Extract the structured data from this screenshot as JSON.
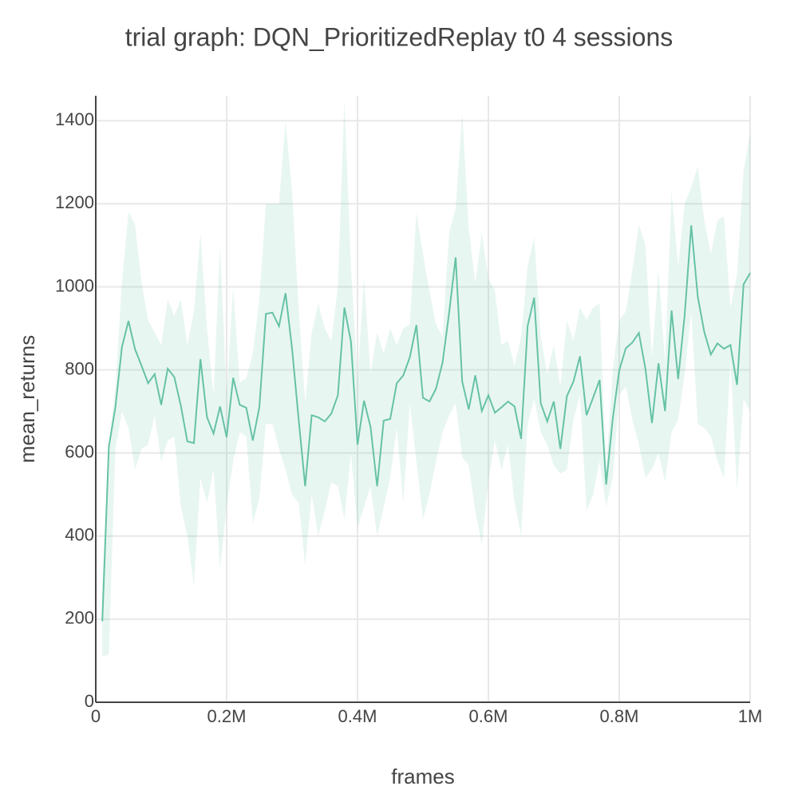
{
  "chart_data": {
    "type": "line",
    "title": "trial graph: DQN_PrioritizedReplay t0 4 sessions",
    "x_label": "frames",
    "y_label": "mean_returns",
    "xlim": [
      0,
      1000000
    ],
    "ylim": [
      0,
      1460
    ],
    "xticks": [
      0,
      {
        "value": 200000,
        "label": "0.2M"
      },
      {
        "value": 400000,
        "label": "0.4M"
      },
      {
        "value": 600000,
        "label": "0.6M"
      },
      {
        "value": 800000,
        "label": "0.8M"
      },
      {
        "value": 1000000,
        "label": "1M"
      }
    ],
    "yticks": [
      0,
      200,
      400,
      600,
      800,
      1000,
      1200,
      1400
    ],
    "grid": true,
    "x": [
      10000,
      20000,
      30000,
      40000,
      50000,
      60000,
      70000,
      80000,
      90000,
      100000,
      110000,
      120000,
      130000,
      140000,
      150000,
      160000,
      170000,
      180000,
      190000,
      200000,
      210000,
      220000,
      230000,
      240000,
      250000,
      260000,
      270000,
      280000,
      290000,
      300000,
      310000,
      320000,
      330000,
      340000,
      350000,
      360000,
      370000,
      380000,
      390000,
      400000,
      410000,
      420000,
      430000,
      440000,
      450000,
      460000,
      470000,
      480000,
      490000,
      500000,
      510000,
      520000,
      530000,
      540000,
      550000,
      560000,
      570000,
      580000,
      590000,
      600000,
      610000,
      620000,
      630000,
      640000,
      650000,
      660000,
      670000,
      680000,
      690000,
      700000,
      710000,
      720000,
      730000,
      740000,
      750000,
      760000,
      770000,
      780000,
      790000,
      800000,
      810000,
      820000,
      830000,
      840000,
      850000,
      860000,
      870000,
      880000,
      890000,
      900000,
      910000,
      920000,
      930000,
      940000,
      950000,
      960000,
      970000,
      980000,
      990000,
      1000000
    ],
    "series": [
      {
        "color": "#66c2a5",
        "values": [
          195,
          615,
          710,
          855,
          918,
          850,
          810,
          768,
          790,
          716,
          803,
          783,
          714,
          628,
          624,
          826,
          686,
          647,
          712,
          638,
          781,
          716,
          709,
          630,
          710,
          935,
          938,
          905,
          985,
          851,
          682,
          520,
          691,
          686,
          676,
          695,
          739,
          950,
          868,
          620,
          726,
          662,
          520,
          678,
          682,
          768,
          787,
          831,
          908,
          733,
          724,
          755,
          818,
          937,
          1071,
          772,
          705,
          787,
          701,
          739,
          697,
          710,
          724,
          712,
          634,
          906,
          974,
          720,
          676,
          724,
          610,
          737,
          772,
          833,
          691,
          733,
          776,
          524,
          682,
          799,
          852,
          866,
          889,
          803,
          672,
          816,
          701,
          943,
          778,
          932,
          1148,
          976,
          891,
          837,
          864,
          851,
          860,
          764,
          1006,
          1033
        ]
      }
    ],
    "band": {
      "color": "#66c2a5",
      "upper": [
        280,
        620,
        760,
        1010,
        1180,
        1150,
        1010,
        920,
        890,
        860,
        970,
        930,
        970,
        860,
        940,
        1130,
        900,
        740,
        1100,
        740,
        1000,
        770,
        780,
        840,
        970,
        1200,
        1200,
        1200,
        1400,
        1230,
        950,
        720,
        890,
        960,
        900,
        870,
        1000,
        1450,
        1050,
        780,
        1020,
        790,
        890,
        840,
        900,
        860,
        900,
        910,
        1180,
        1080,
        990,
        910,
        880,
        1130,
        1190,
        1420,
        1140,
        1010,
        1130,
        1020,
        990,
        860,
        870,
        810,
        880,
        1050,
        1120,
        880,
        790,
        860,
        760,
        920,
        870,
        950,
        920,
        950,
        960,
        560,
        800,
        920,
        940,
        1040,
        1150,
        1100,
        830,
        1040,
        820,
        1230,
        1050,
        1200,
        1240,
        1290,
        1160,
        1080,
        1160,
        1170,
        950,
        1030,
        1280,
        1370
      ],
      "lower": [
        110,
        115,
        610,
        700,
        660,
        560,
        610,
        620,
        690,
        580,
        630,
        640,
        470,
        400,
        280,
        540,
        480,
        560,
        320,
        470,
        580,
        650,
        640,
        430,
        490,
        670,
        670,
        610,
        560,
        500,
        480,
        330,
        500,
        400,
        460,
        530,
        520,
        440,
        600,
        420,
        470,
        520,
        400,
        470,
        540,
        660,
        480,
        720,
        580,
        440,
        500,
        580,
        650,
        690,
        720,
        590,
        570,
        460,
        380,
        530,
        630,
        560,
        620,
        480,
        400,
        670,
        730,
        650,
        620,
        570,
        550,
        560,
        680,
        740,
        460,
        500,
        580,
        470,
        540,
        740,
        760,
        680,
        620,
        540,
        560,
        600,
        530,
        650,
        680,
        790,
        940,
        670,
        660,
        640,
        580,
        540,
        820,
        510,
        730,
        700
      ]
    }
  }
}
